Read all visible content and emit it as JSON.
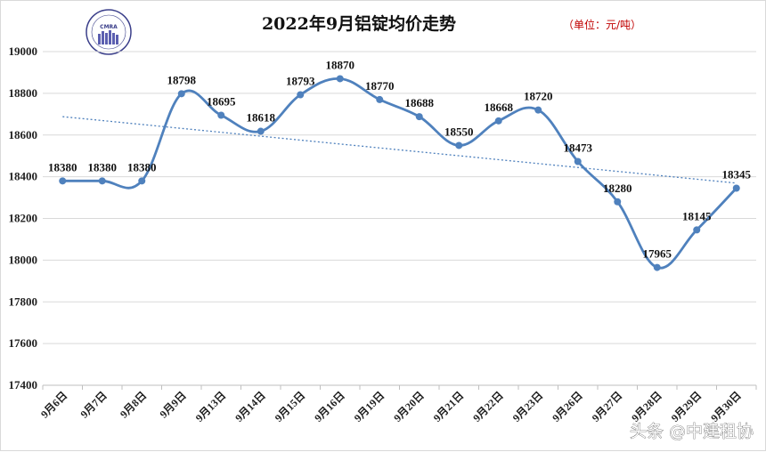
{
  "chart_data": {
    "type": "line",
    "title": "2022年9月铝锭均价走势",
    "unit_note": "（单位：元/吨）",
    "categories": [
      "9月6日",
      "9月7日",
      "9月8日",
      "9月9日",
      "9月13日",
      "9月14日",
      "9月15日",
      "9月16日",
      "9月19日",
      "9月20日",
      "9月21日",
      "9月22日",
      "9月23日",
      "9月26日",
      "9月27日",
      "9月28日",
      "9月29日",
      "9月30日"
    ],
    "series": [
      {
        "values": [
          18380,
          18380,
          18380,
          18798,
          18695,
          18618,
          18793,
          18870,
          18770,
          18688,
          18550,
          18668,
          18720,
          18473,
          18280,
          17965,
          18145,
          18345
        ]
      }
    ],
    "y_ticks": [
      17400,
      17600,
      17800,
      18000,
      18200,
      18400,
      18600,
      18800,
      19000
    ],
    "ylim": [
      17400,
      19000
    ],
    "trendline": {
      "style": "dotted-linear"
    },
    "grid": "horizontal",
    "series_color": "#4f81bd",
    "trend_color": "#4f81bd"
  },
  "logo": {
    "text": "CMRA"
  },
  "watermark": {
    "text": "头条 @中建租协"
  }
}
